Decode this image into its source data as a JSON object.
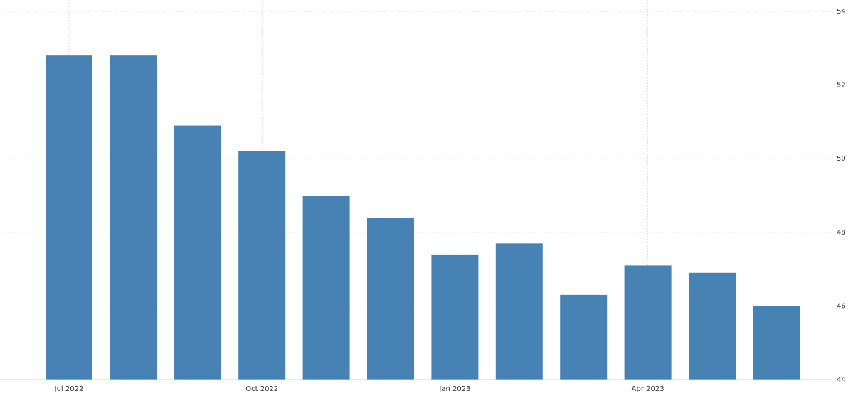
{
  "chart_data": {
    "type": "bar",
    "categories": [
      "Jul 2022",
      null,
      null,
      "Oct 2022",
      null,
      null,
      "Jan 2023",
      null,
      null,
      "Apr 2023",
      null,
      null
    ],
    "values": [
      52.8,
      52.8,
      50.9,
      50.2,
      49.0,
      48.4,
      47.4,
      47.7,
      46.3,
      47.1,
      46.9,
      46.0
    ],
    "color": "#4682b4",
    "ylim": [
      44,
      54
    ],
    "yticks": [
      44,
      46,
      48,
      50,
      52,
      54
    ],
    "grid": true
  }
}
